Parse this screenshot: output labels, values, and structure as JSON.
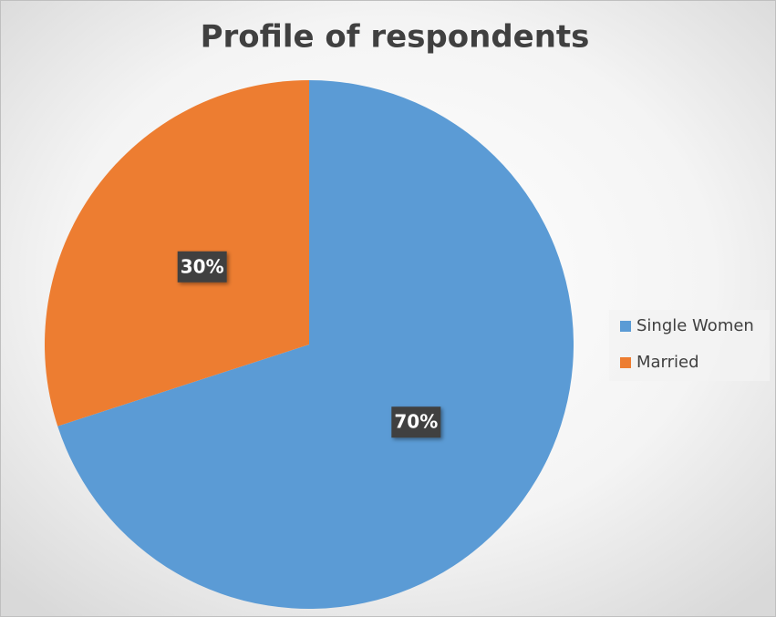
{
  "chart_data": {
    "type": "pie",
    "title": "Profile of respondents",
    "categories": [
      "Single Women",
      "Married"
    ],
    "values": [
      70,
      30
    ],
    "value_labels": [
      "70%",
      "30%"
    ],
    "colors": [
      "#5b9bd5",
      "#ed7d31"
    ],
    "legend": "right"
  }
}
